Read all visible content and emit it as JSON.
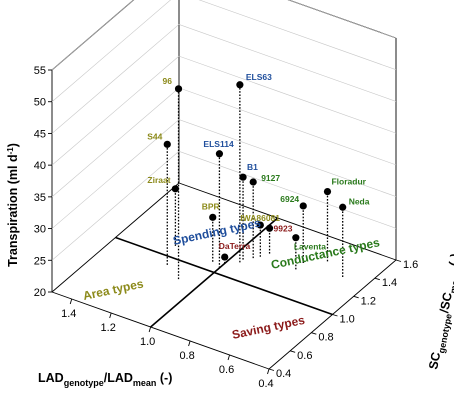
{
  "chart_data": {
    "type": "scatter3d",
    "title": "",
    "axes": {
      "x": {
        "label_main": "LAD",
        "label_sub1": "genotype",
        "label_mid": "/LAD",
        "label_sub2": "mean",
        "label_unit": " (-)",
        "range": [
          0.4,
          1.5
        ],
        "ticks": [
          "0.4",
          "0.6",
          "0.8",
          "1.0",
          "1.2",
          "1.4"
        ],
        "tick_values": [
          0.4,
          0.6,
          0.8,
          1.0,
          1.2,
          1.4
        ]
      },
      "y": {
        "label_main": "SC",
        "label_sub1": "genotype",
        "label_mid": "/SC",
        "label_sub2": "mean",
        "label_unit": " (-)",
        "range": [
          0.4,
          1.6
        ],
        "ticks": [
          "0.4",
          "0.6",
          "0.8",
          "1.0",
          "1.2",
          "1.4",
          "1.6"
        ],
        "tick_values": [
          0.4,
          0.6,
          0.8,
          1.0,
          1.2,
          1.4,
          1.6
        ]
      },
      "z": {
        "label_main": "Transpiration (ml d",
        "label_sup": "-1",
        "label_end": ")",
        "range": [
          20,
          55
        ],
        "ticks": [
          "20",
          "25",
          "30",
          "35",
          "40",
          "45",
          "50",
          "55"
        ],
        "tick_values": [
          20,
          25,
          30,
          35,
          40,
          45,
          50,
          55
        ]
      }
    },
    "regions": [
      {
        "name": "Spending types",
        "color": "#1f4e9c"
      },
      {
        "name": "Conductance types",
        "color": "#2a7a1c"
      },
      {
        "name": "Area types",
        "color": "#8c8a1a"
      },
      {
        "name": "Saving types",
        "color": "#8b1a1a"
      }
    ],
    "points": [
      {
        "label": "ELS63",
        "x": 0.95,
        "y": 1.15,
        "z": 48,
        "color": "#1f4e9c"
      },
      {
        "label": "96",
        "x": 1.1,
        "y": 0.85,
        "z": 50,
        "color": "#8c8a1a"
      },
      {
        "label": "ELS114",
        "x": 1.0,
        "y": 1.05,
        "z": 38,
        "color": "#1f4e9c"
      },
      {
        "label": "S44",
        "x": 1.2,
        "y": 0.93,
        "z": 39,
        "color": "#8c8a1a"
      },
      {
        "label": "B1",
        "x": 0.95,
        "y": 1.18,
        "z": 33,
        "color": "#1f4e9c"
      },
      {
        "label": "9127",
        "x": 0.92,
        "y": 1.22,
        "z": 32,
        "color": "#2a7a1c"
      },
      {
        "label": "Ziraat",
        "x": 1.25,
        "y": 1.1,
        "z": 29,
        "color": "#8c8a1a"
      },
      {
        "label": "BPR",
        "x": 1.05,
        "y": 1.08,
        "z": 27,
        "color": "#8c8a1a"
      },
      {
        "label": "IWA86081",
        "x": 0.9,
        "y": 1.25,
        "z": 25,
        "color": "#8c8a1a"
      },
      {
        "label": "9923",
        "x": 0.88,
        "y": 1.3,
        "z": 24,
        "color": "#8b1a1a"
      },
      {
        "label": "DaTerra",
        "x": 1.0,
        "y": 1.1,
        "z": 21,
        "color": "#8b1a1a"
      },
      {
        "label": "6924",
        "x": 0.72,
        "y": 1.32,
        "z": 29,
        "color": "#2a7a1c"
      },
      {
        "label": "Floradur",
        "x": 0.64,
        "y": 1.4,
        "z": 31,
        "color": "#2a7a1c"
      },
      {
        "label": "Neda",
        "x": 0.52,
        "y": 1.32,
        "z": 31,
        "color": "#2a7a1c"
      },
      {
        "label": "Laventa",
        "x": 0.72,
        "y": 1.25,
        "z": 25,
        "color": "#2a7a1c"
      }
    ],
    "grid": true
  }
}
